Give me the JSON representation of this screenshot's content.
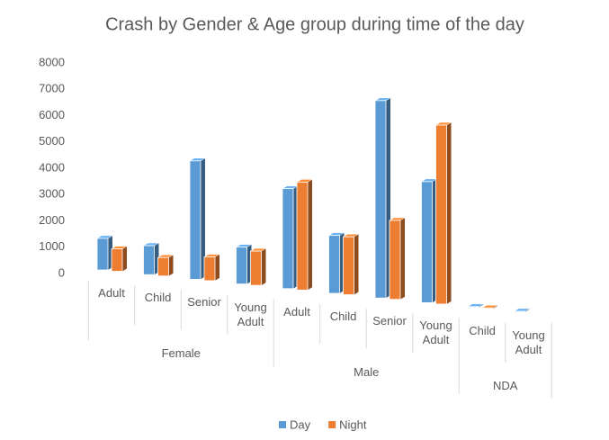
{
  "chart_data": {
    "type": "bar3d",
    "title": "Crash by Gender & Age group during time of the day",
    "groups": [
      {
        "name": "Female",
        "categories": [
          "Adult",
          "Child",
          "Senior",
          "Young Adult"
        ]
      },
      {
        "name": "Male",
        "categories": [
          "Adult",
          "Child",
          "Senior",
          "Young Adult"
        ]
      },
      {
        "name": "NDA",
        "categories": [
          "Child",
          "Young Adult"
        ]
      }
    ],
    "series": [
      {
        "name": "Day",
        "color": "#5b9bd5",
        "values": [
          1200,
          1100,
          4500,
          1400,
          3800,
          2200,
          7500,
          4600,
          30,
          30
        ]
      },
      {
        "name": "Night",
        "color": "#ed7d31",
        "values": [
          850,
          700,
          900,
          1300,
          4100,
          2200,
          3000,
          6800,
          30,
          null
        ]
      }
    ],
    "ylim": [
      0,
      8000
    ],
    "yticks": [
      0,
      1000,
      2000,
      3000,
      4000,
      5000,
      6000,
      7000,
      8000
    ]
  }
}
